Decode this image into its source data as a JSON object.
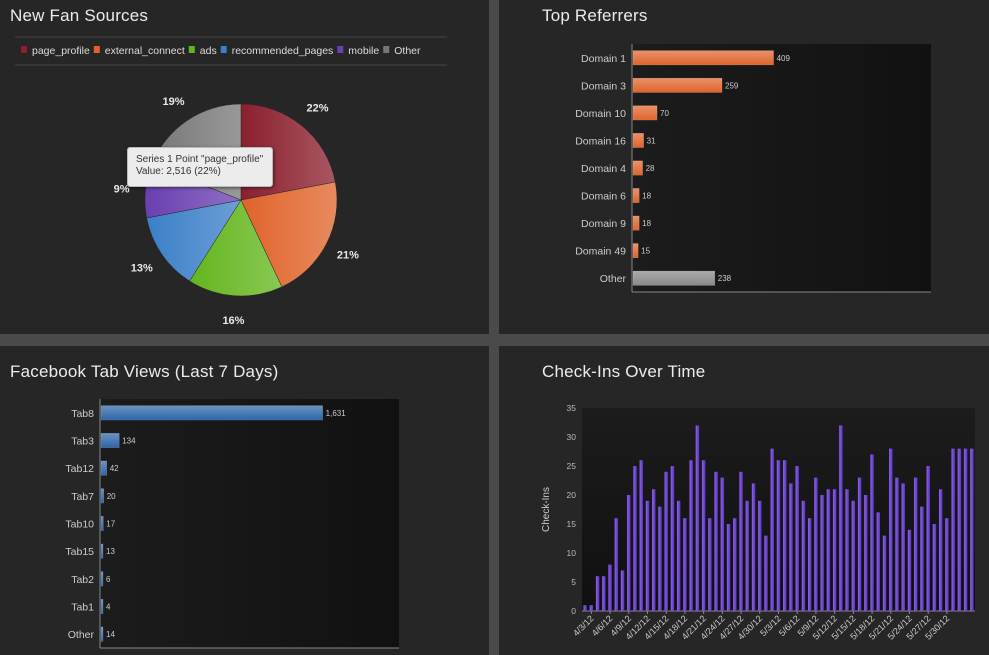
{
  "panels": {
    "fan_sources": {
      "title": "New Fan Sources"
    },
    "referrers": {
      "title": "Top Referrers"
    },
    "tab_views": {
      "title": "Facebook Tab Views (Last 7 Days)"
    },
    "checkins": {
      "title": "Check-Ins Over Time"
    }
  },
  "tooltip": {
    "line1": "Series 1 Point \"page_profile\"",
    "line2": "Value: 2,516 (22%)"
  },
  "chart_data": [
    {
      "type": "pie",
      "title": "New Fan Sources",
      "legend_position": "top",
      "slices": [
        {
          "label": "page_profile",
          "value": 22,
          "display": "22%",
          "color": "#8b1f2e"
        },
        {
          "label": "external_connect",
          "value": 21,
          "display": "21%",
          "color": "#e0632a"
        },
        {
          "label": "ads",
          "value": 16,
          "display": "16%",
          "color": "#63b51c"
        },
        {
          "label": "recommended_pages",
          "value": 13,
          "display": "13%",
          "color": "#3b7fc8"
        },
        {
          "label": "mobile",
          "value": 9,
          "display": "9%",
          "color": "#6a3fb0"
        },
        {
          "label": "Other",
          "value": 19,
          "display": "19%",
          "color": "#777777"
        }
      ]
    },
    {
      "type": "bar",
      "orientation": "horizontal",
      "title": "Top Referrers",
      "categories": [
        "Domain 1",
        "Domain 3",
        "Domain 10",
        "Domain 16",
        "Domain 4",
        "Domain 6",
        "Domain 9",
        "Domain 49",
        "Other"
      ],
      "values": [
        409,
        259,
        70,
        31,
        28,
        18,
        18,
        15,
        238
      ],
      "colors": {
        "bar": "#e0632a",
        "other": "#8a8a8a"
      },
      "xlim": [
        0,
        870
      ]
    },
    {
      "type": "bar",
      "orientation": "horizontal",
      "title": "Facebook Tab Views (Last 7 Days)",
      "categories": [
        "Tab8",
        "Tab3",
        "Tab12",
        "Tab7",
        "Tab10",
        "Tab15",
        "Tab2",
        "Tab1",
        "Other"
      ],
      "values": [
        1631,
        134,
        42,
        20,
        17,
        13,
        6,
        4,
        14
      ],
      "labels": [
        "1,631",
        "134",
        "42",
        "20",
        "17",
        "13",
        "6",
        "4",
        "14"
      ],
      "colors": {
        "bar": "#2d64a8"
      },
      "xlim": [
        0,
        2200
      ]
    },
    {
      "type": "bar",
      "title": "Check-Ins Over Time",
      "ylabel": "Check-Ins",
      "ylim": [
        0,
        35
      ],
      "yticks": [
        0,
        5,
        10,
        15,
        20,
        25,
        30,
        35
      ],
      "colors": {
        "bar": "#6a3fd0"
      },
      "x_tick_labels": [
        "4/3/12",
        "4/6/12",
        "4/9/12",
        "4/12/12",
        "4/15/12",
        "4/18/12",
        "4/21/12",
        "4/24/12",
        "4/27/12",
        "4/30/12",
        "5/3/12",
        "5/6/12",
        "5/9/12",
        "5/12/12",
        "5/15/12",
        "5/18/12",
        "5/21/12",
        "5/24/12",
        "5/27/12",
        "5/30/12"
      ],
      "x": [
        "4/2/12",
        "4/3/12",
        "4/4/12",
        "4/5/12",
        "4/6/12",
        "4/7/12",
        "4/8/12",
        "4/9/12",
        "4/10/12",
        "4/11/12",
        "4/12/12",
        "4/13/12",
        "4/14/12",
        "4/15/12",
        "4/16/12",
        "4/17/12",
        "4/18/12",
        "4/19/12",
        "4/20/12",
        "4/21/12",
        "4/22/12",
        "4/23/12",
        "4/24/12",
        "4/25/12",
        "4/26/12",
        "4/27/12",
        "4/28/12",
        "4/29/12",
        "4/30/12",
        "5/1/12",
        "5/2/12",
        "5/3/12",
        "5/4/12",
        "5/5/12",
        "5/6/12",
        "5/7/12",
        "5/8/12",
        "5/9/12",
        "5/10/12",
        "5/11/12",
        "5/12/12",
        "5/13/12",
        "5/14/12",
        "5/15/12",
        "5/16/12",
        "5/17/12",
        "5/18/12",
        "5/19/12",
        "5/20/12",
        "5/21/12",
        "5/22/12",
        "5/23/12",
        "5/24/12",
        "5/25/12",
        "5/26/12",
        "5/27/12",
        "5/28/12",
        "5/29/12",
        "5/30/12",
        "5/31/12",
        "6/1/12",
        "6/2/12",
        "6/3/12"
      ],
      "values": [
        1,
        1,
        6,
        6,
        8,
        16,
        7,
        20,
        25,
        26,
        19,
        21,
        18,
        24,
        25,
        19,
        16,
        26,
        32,
        26,
        16,
        24,
        23,
        15,
        16,
        24,
        19,
        22,
        19,
        13,
        28,
        26,
        26,
        22,
        25,
        19,
        16,
        23,
        20,
        21,
        21,
        32,
        21,
        19,
        23,
        20,
        27,
        17,
        13,
        28,
        23,
        22,
        14,
        23,
        18,
        25,
        15,
        21,
        16,
        28,
        28,
        28,
        28
      ]
    }
  ]
}
